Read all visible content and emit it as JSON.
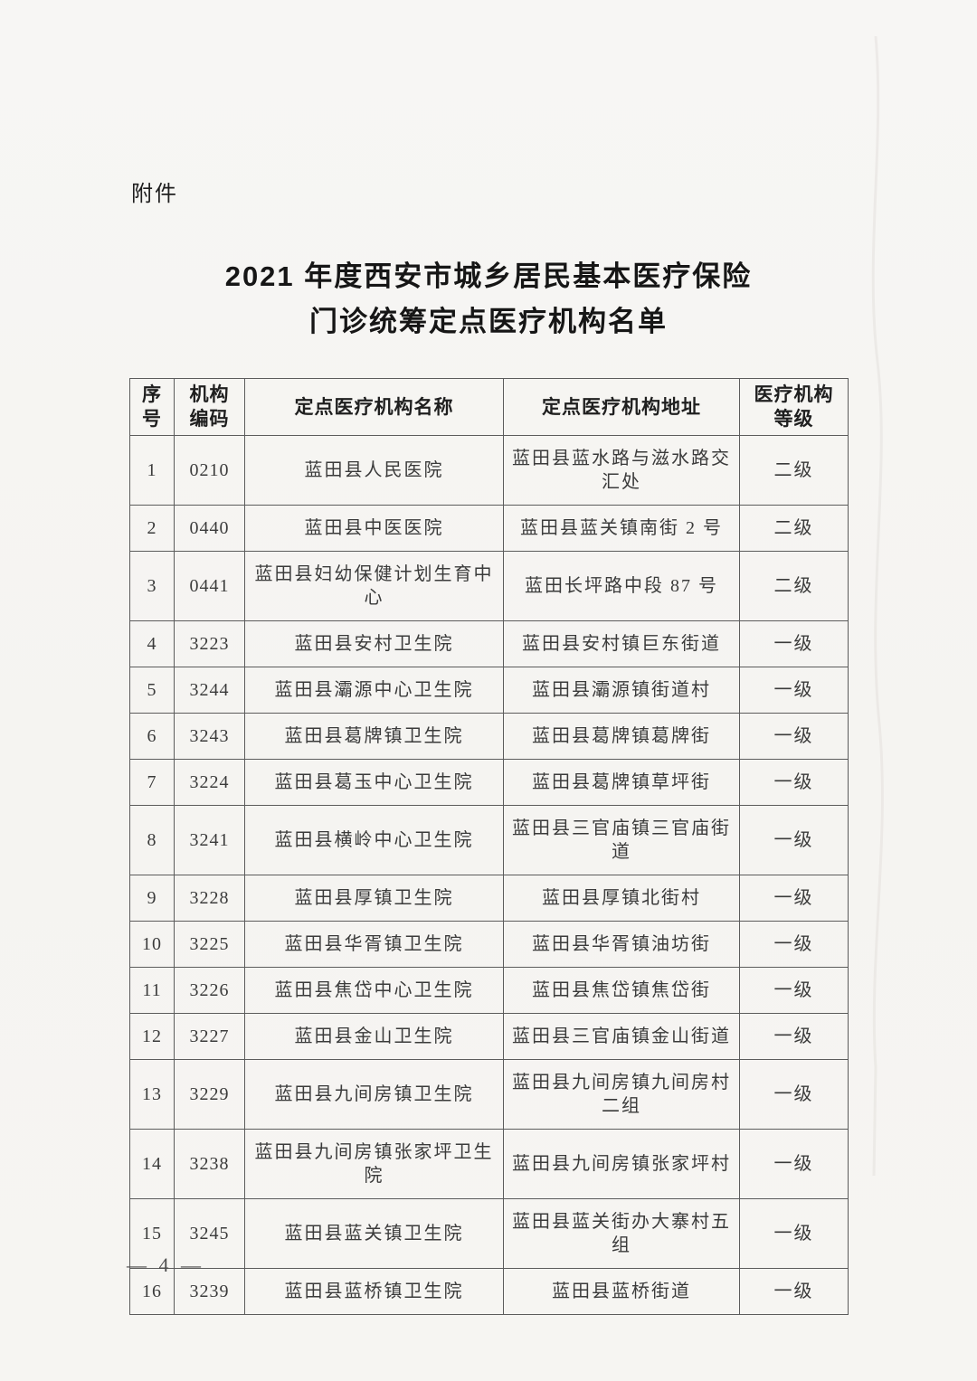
{
  "page": {
    "attachment_label": "附件",
    "title_line1": "2021 年度西安市城乡居民基本医疗保险",
    "title_line2": "门诊统筹定点医疗机构名单",
    "page_number": "— 4 —"
  },
  "table": {
    "headers": [
      "序\n号",
      "机构\n编码",
      "定点医疗机构名称",
      "定点医疗机构地址",
      "医疗机构\n等级"
    ],
    "rows": [
      {
        "seq": "1",
        "code": "0210",
        "name": "蓝田县人民医院",
        "address": "蓝田县蓝水路与滋水路交汇处",
        "level": "二级"
      },
      {
        "seq": "2",
        "code": "0440",
        "name": "蓝田县中医医院",
        "address": "蓝田县蓝关镇南街 2 号",
        "level": "二级"
      },
      {
        "seq": "3",
        "code": "0441",
        "name": "蓝田县妇幼保健计划生育中心",
        "address": "蓝田长坪路中段 87 号",
        "level": "二级"
      },
      {
        "seq": "4",
        "code": "3223",
        "name": "蓝田县安村卫生院",
        "address": "蓝田县安村镇巨东街道",
        "level": "一级"
      },
      {
        "seq": "5",
        "code": "3244",
        "name": "蓝田县灞源中心卫生院",
        "address": "蓝田县灞源镇街道村",
        "level": "一级"
      },
      {
        "seq": "6",
        "code": "3243",
        "name": "蓝田县葛牌镇卫生院",
        "address": "蓝田县葛牌镇葛牌街",
        "level": "一级"
      },
      {
        "seq": "7",
        "code": "3224",
        "name": "蓝田县葛玉中心卫生院",
        "address": "蓝田县葛牌镇草坪街",
        "level": "一级"
      },
      {
        "seq": "8",
        "code": "3241",
        "name": "蓝田县横岭中心卫生院",
        "address": "蓝田县三官庙镇三官庙街道",
        "level": "一级"
      },
      {
        "seq": "9",
        "code": "3228",
        "name": "蓝田县厚镇卫生院",
        "address": "蓝田县厚镇北街村",
        "level": "一级"
      },
      {
        "seq": "10",
        "code": "3225",
        "name": "蓝田县华胥镇卫生院",
        "address": "蓝田县华胥镇油坊街",
        "level": "一级"
      },
      {
        "seq": "11",
        "code": "3226",
        "name": "蓝田县焦岱中心卫生院",
        "address": "蓝田县焦岱镇焦岱街",
        "level": "一级"
      },
      {
        "seq": "12",
        "code": "3227",
        "name": "蓝田县金山卫生院",
        "address": "蓝田县三官庙镇金山街道",
        "level": "一级"
      },
      {
        "seq": "13",
        "code": "3229",
        "name": "蓝田县九间房镇卫生院",
        "address": "蓝田县九间房镇九间房村二组",
        "level": "一级"
      },
      {
        "seq": "14",
        "code": "3238",
        "name": "蓝田县九间房镇张家坪卫生院",
        "address": "蓝田县九间房镇张家坪村",
        "level": "一级"
      },
      {
        "seq": "15",
        "code": "3245",
        "name": "蓝田县蓝关镇卫生院",
        "address": "蓝田县蓝关街办大寨村五组",
        "level": "一级"
      },
      {
        "seq": "16",
        "code": "3239",
        "name": "蓝田县蓝桥镇卫生院",
        "address": "蓝田县蓝桥街道",
        "level": "一级"
      }
    ]
  },
  "colors": {
    "paper": "#f6f5f2",
    "border": "#5c5c5c",
    "text": "#3b3b3b"
  }
}
